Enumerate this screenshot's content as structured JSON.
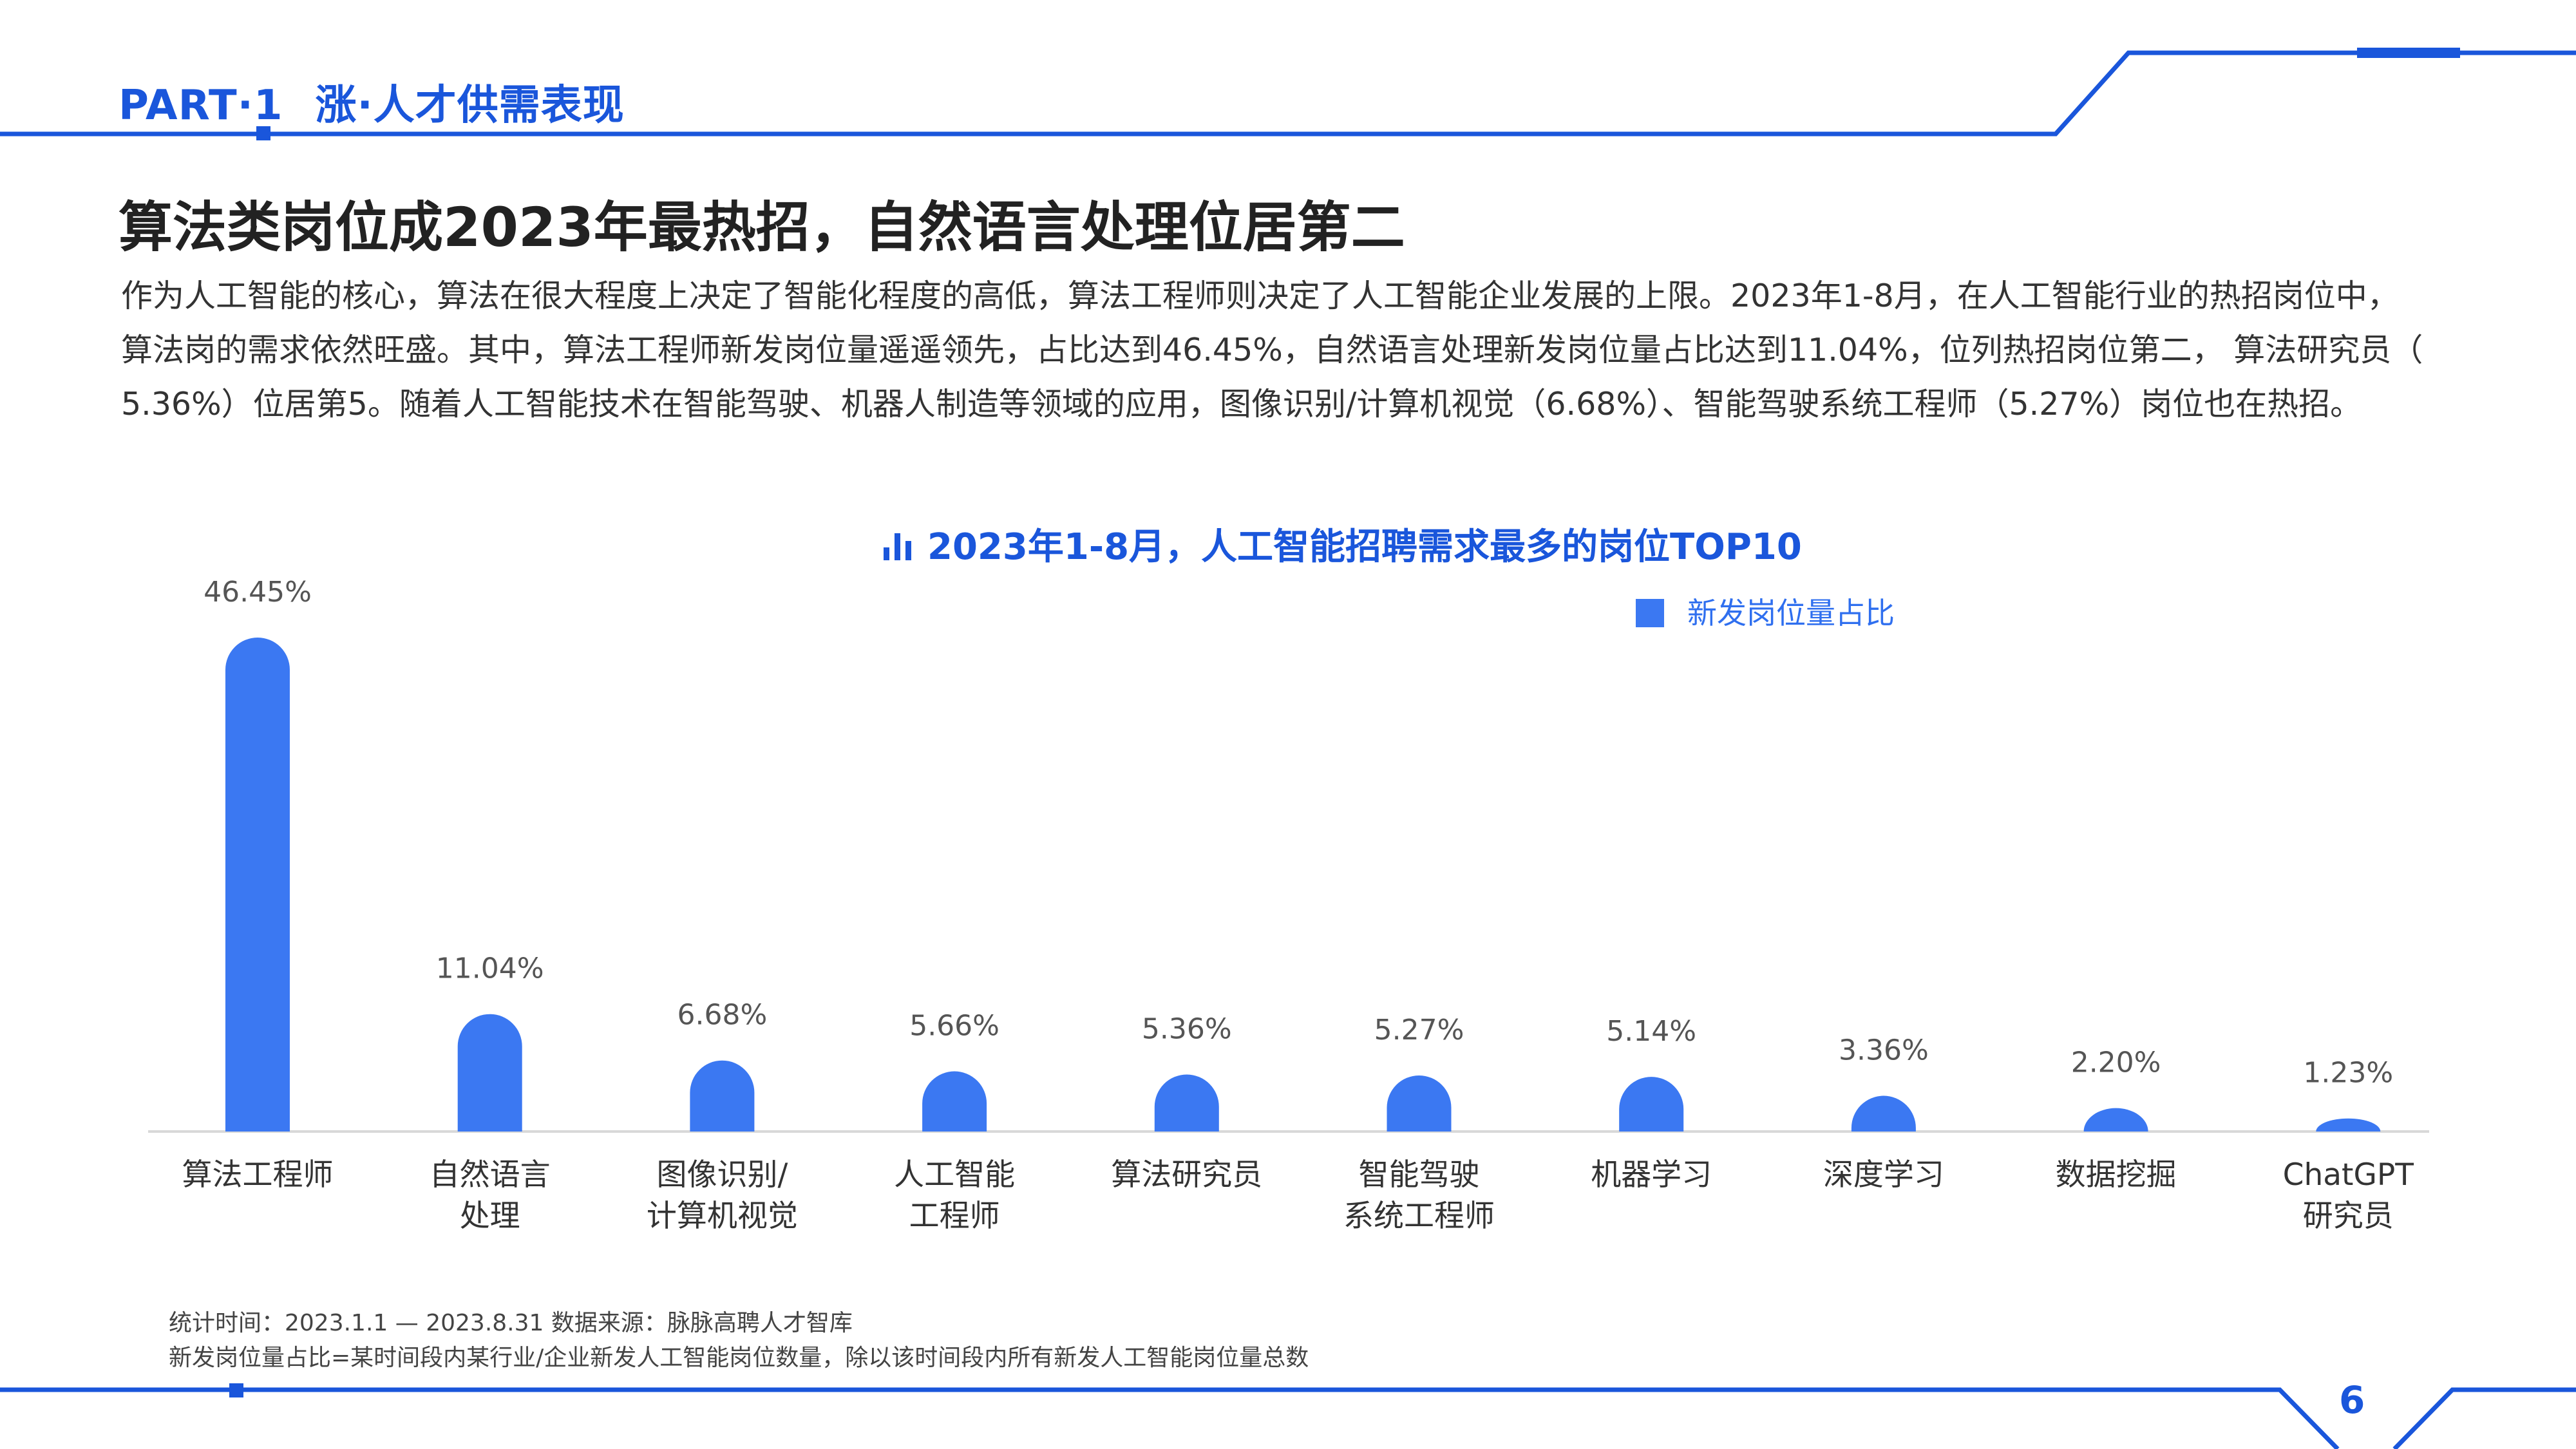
{
  "header": {
    "part": "PART·1",
    "section": "涨·人才供需表现"
  },
  "headline": "算法类岗位成2023年最热招，自然语言处理位居第二",
  "intro": [
    "作为人工智能的核心，算法在很大程度上决定了智能化程度的高低，算法工程师则决定了人工智能企业发展的上限。2023年1-8月，在人工智能行业的热招岗位中，",
    "算法岗的需求依然旺盛。其中，算法工程师新发岗位量遥遥领先，占比达到46.45%，自然语言处理新发岗位量占比达到11.04%，位列热招岗位第二，  算法研究员（",
    "5.36%）位居第5。随着人工智能技术在智能驾驶、机器人制造等领域的应用，图像识别/计算机视觉（6.68%）、智能驾驶系统工程师（5.27%）岗位也在热招。"
  ],
  "chart_icon": "bar-chart-icon",
  "colors": {
    "accent": "#1a56db",
    "bar": "#3b78f2"
  },
  "chart_data": {
    "type": "bar",
    "title": "2023年1-8月，人工智能招聘需求最多的岗位TOP10",
    "xlabel": "",
    "ylabel": "",
    "ylim": [
      0,
      50
    ],
    "grid": false,
    "legend_position": "top-right",
    "categories": [
      [
        "算法工程师"
      ],
      [
        "自然语言",
        "处理"
      ],
      [
        "图像识别/",
        "计算机视觉"
      ],
      [
        "人工智能",
        "工程师"
      ],
      [
        "算法研究员"
      ],
      [
        "智能驾驶",
        "系统工程师"
      ],
      [
        "机器学习"
      ],
      [
        "深度学习"
      ],
      [
        "数据挖掘"
      ],
      [
        "ChatGPT",
        "研究员"
      ]
    ],
    "series": [
      {
        "name": "新发岗位量占比",
        "values": [
          46.45,
          11.04,
          6.68,
          5.66,
          5.36,
          5.27,
          5.14,
          3.36,
          2.2,
          1.23
        ],
        "labels": [
          "46.45%",
          "11.04%",
          "6.68%",
          "5.66%",
          "5.36%",
          "5.27%",
          "5.14%",
          "3.36%",
          "2.20%",
          "1.23%"
        ]
      }
    ]
  },
  "notes": [
    "统计时间：2023.1.1 — 2023.8.31  数据来源：脉脉高聘人才智库",
    "新发岗位量占比=某时间段内某行业/企业新发人工智能岗位数量，除以该时间段内所有新发人工智能岗位量总数"
  ],
  "page_number": "6"
}
